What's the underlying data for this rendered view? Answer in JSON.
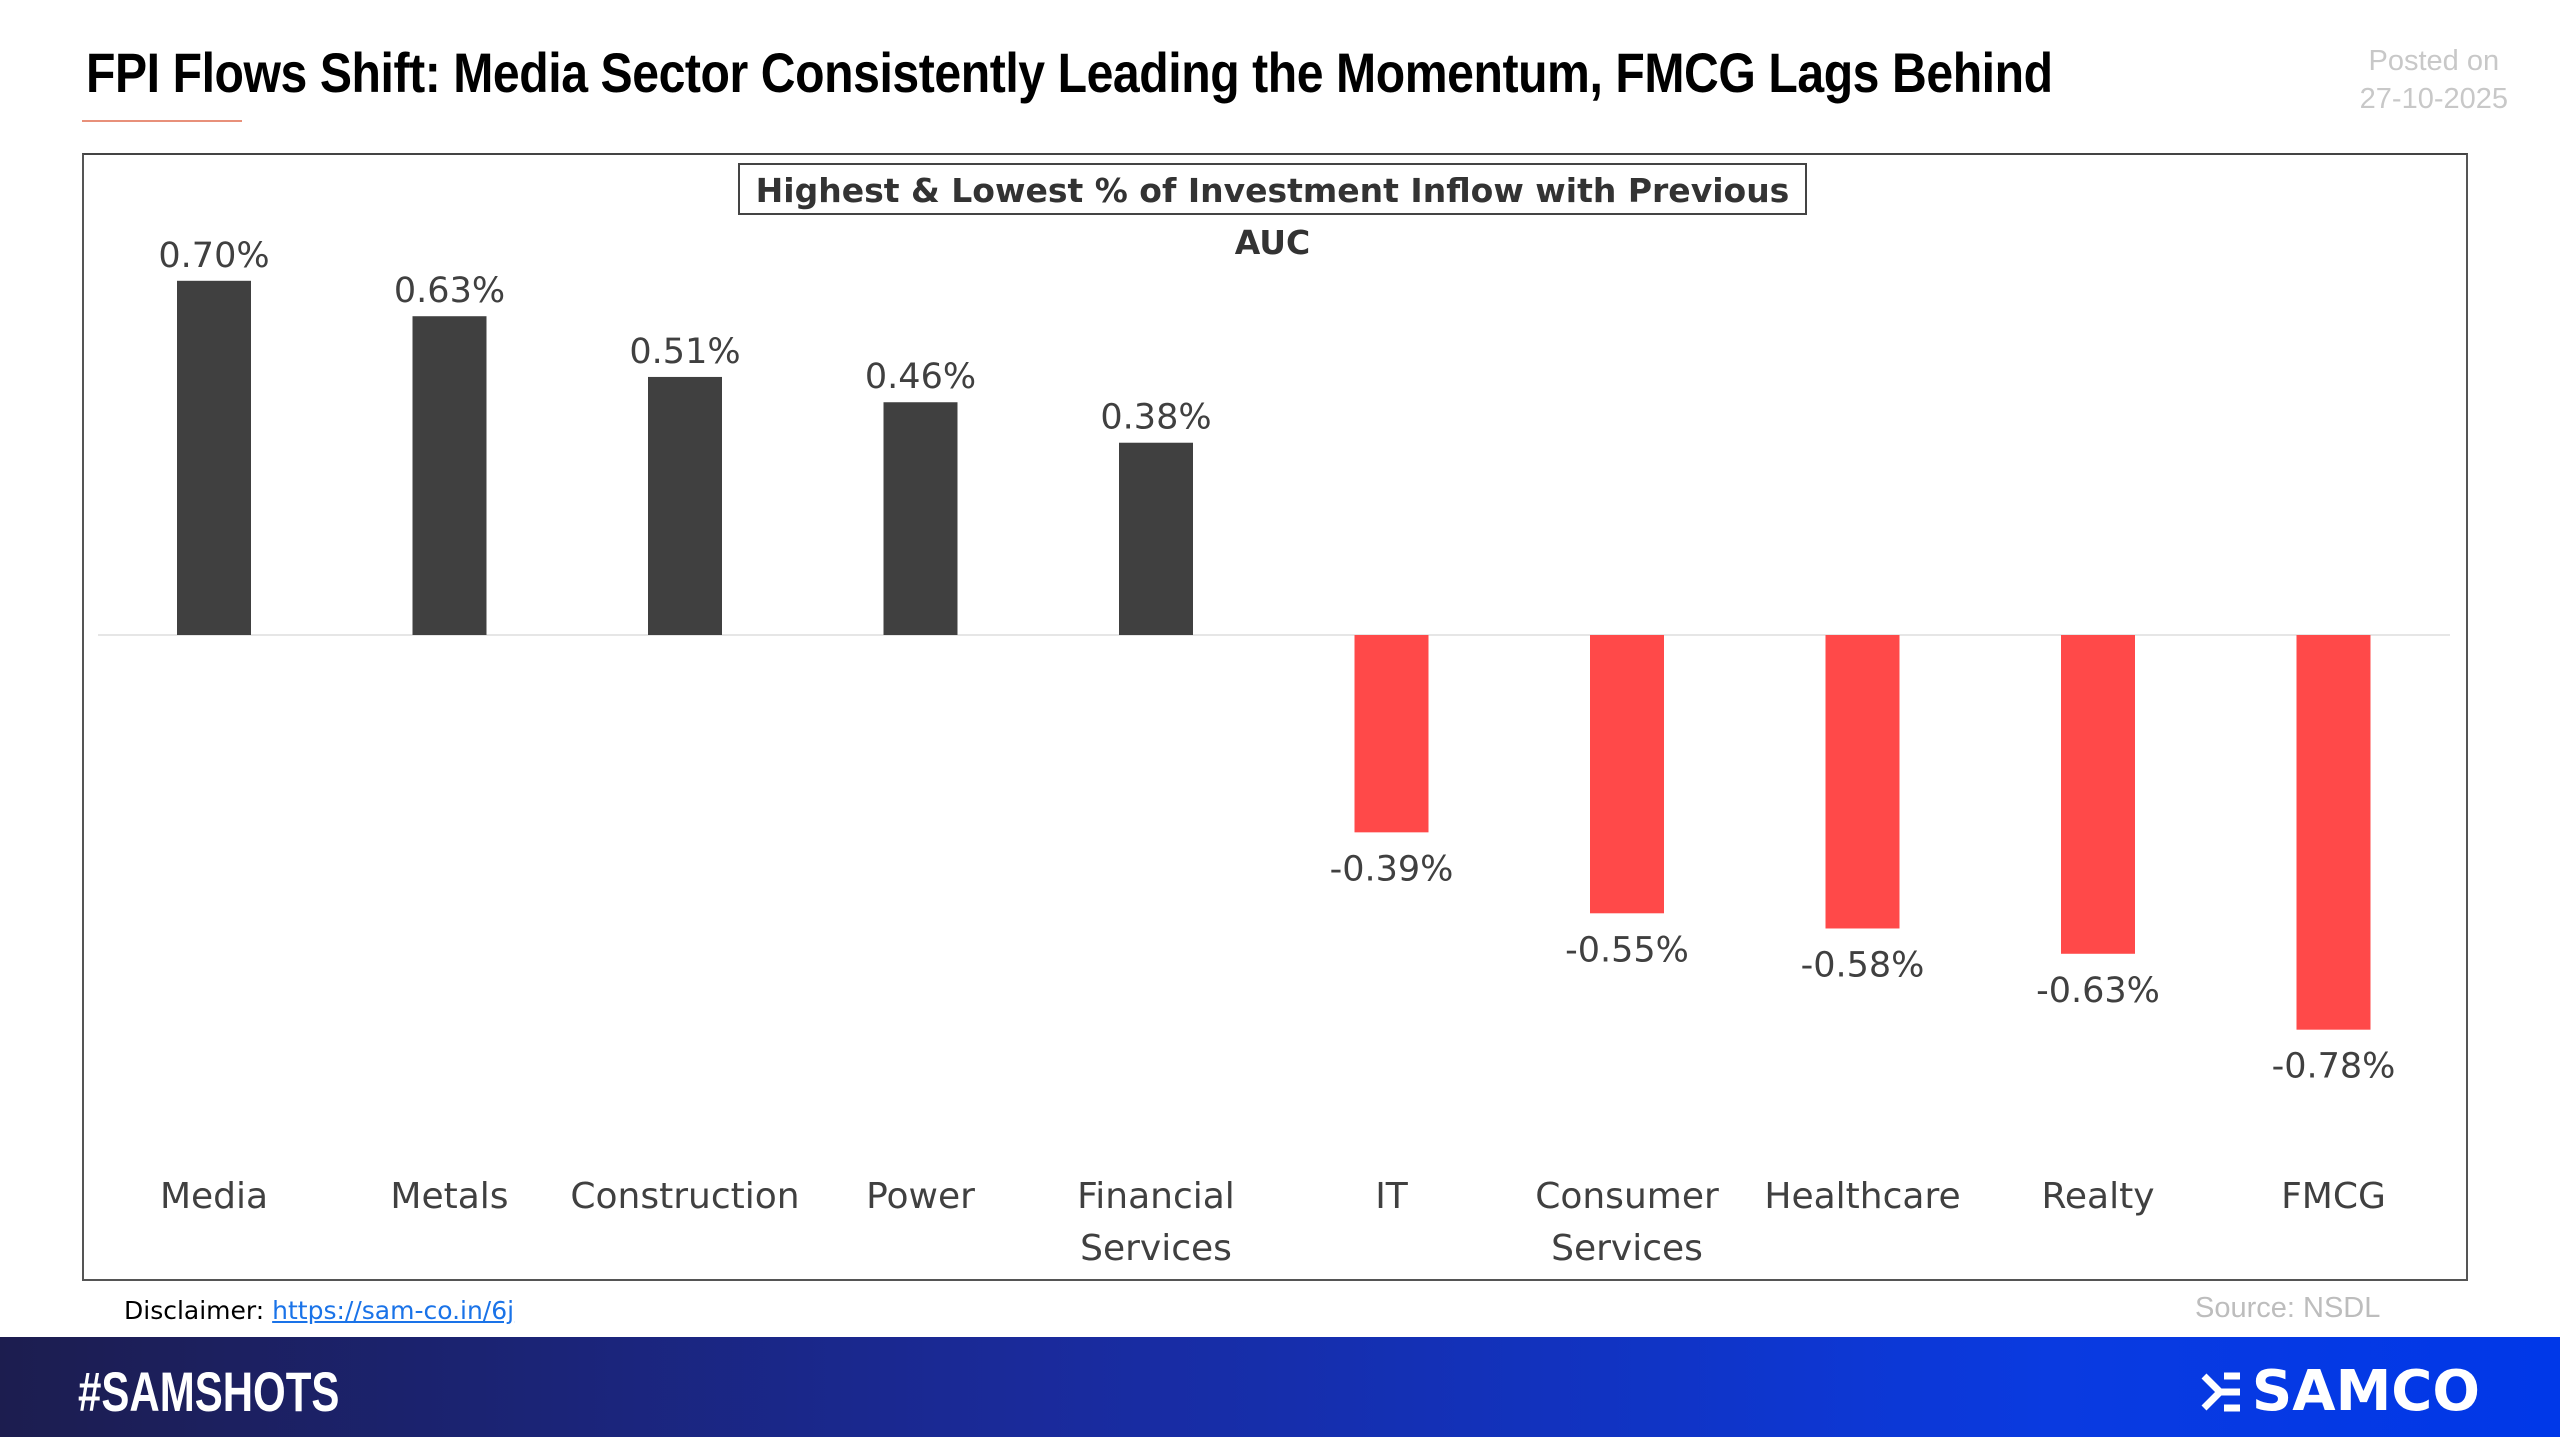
{
  "header": {
    "title": "FPI Flows Shift: Media Sector Consistently Leading the Momentum, FMCG Lags Behind",
    "posted_label": "Posted on",
    "posted_date": "27-10-2025"
  },
  "chart_data": {
    "type": "bar",
    "title": "Highest & Lowest % of Investment Inflow with Previous AUC",
    "categories": [
      "Media",
      "Metals",
      "Construction",
      "Power",
      "Financial Services",
      "IT",
      "Consumer Services",
      "Healthcare",
      "Realty",
      "FMCG"
    ],
    "category_lines": [
      [
        "Media"
      ],
      [
        "Metals"
      ],
      [
        "Construction"
      ],
      [
        "Power"
      ],
      [
        "Financial",
        "Services"
      ],
      [
        "IT"
      ],
      [
        "Consumer",
        "Services"
      ],
      [
        "Healthcare"
      ],
      [
        "Realty"
      ],
      [
        "FMCG"
      ]
    ],
    "values": [
      0.7,
      0.63,
      0.51,
      0.46,
      0.38,
      -0.39,
      -0.55,
      -0.58,
      -0.63,
      -0.78
    ],
    "data_labels": [
      "0.70%",
      "0.63%",
      "0.51%",
      "0.46%",
      "0.38%",
      "-0.39%",
      "-0.55%",
      "-0.58%",
      "-0.63%",
      "-0.78%"
    ],
    "unit": "%",
    "colors": {
      "positive": "#404040",
      "negative": "#ff4949"
    },
    "grid": false,
    "legend": "none"
  },
  "footer": {
    "disclaimer_label": "Disclaimer:",
    "disclaimer_link": "https://sam-co.in/6j",
    "source": "Source: NSDL",
    "hashtag": "#SAMSHOTS",
    "brand": "SAMCO"
  }
}
